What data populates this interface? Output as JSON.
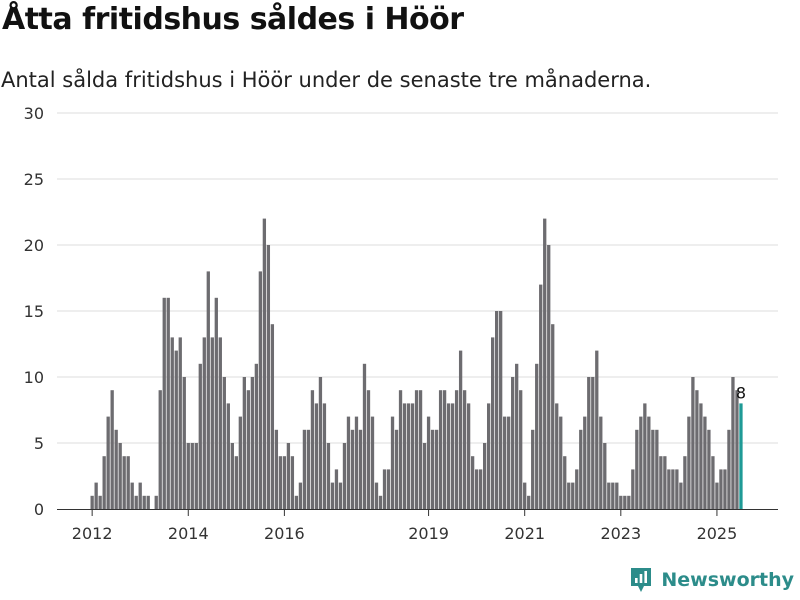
{
  "title": "Åtta fritidshus såldes i Höör",
  "subtitle": "Antal sålda fritidshus i Höör under de senaste tre månaderna.",
  "brand": "Newsworthy",
  "colors": {
    "bar": "#6d6c70",
    "highlight": "#1f9a96",
    "grid": "#dddddd",
    "brand": "#2c8c8a"
  },
  "chart_data": {
    "type": "bar",
    "ylim": [
      0,
      30
    ],
    "yticks": [
      0,
      5,
      10,
      15,
      20,
      25,
      30
    ],
    "x_start": "2012-01",
    "xticks": [
      "2012",
      "2014",
      "2016",
      "2019",
      "2021",
      "2023",
      "2025"
    ],
    "values": [
      1,
      2,
      1,
      4,
      7,
      9,
      6,
      5,
      4,
      4,
      2,
      1,
      2,
      1,
      1,
      0,
      1,
      9,
      16,
      16,
      13,
      12,
      13,
      10,
      5,
      5,
      5,
      11,
      13,
      18,
      13,
      16,
      13,
      10,
      8,
      5,
      4,
      7,
      10,
      9,
      10,
      11,
      18,
      22,
      20,
      14,
      6,
      4,
      4,
      5,
      4,
      1,
      2,
      6,
      6,
      9,
      8,
      10,
      8,
      5,
      2,
      3,
      2,
      5,
      7,
      6,
      7,
      6,
      11,
      9,
      7,
      2,
      1,
      3,
      3,
      7,
      6,
      9,
      8,
      8,
      8,
      9,
      9,
      5,
      7,
      6,
      6,
      9,
      9,
      8,
      8,
      9,
      12,
      9,
      8,
      4,
      3,
      3,
      5,
      8,
      13,
      15,
      15,
      7,
      7,
      10,
      11,
      9,
      2,
      1,
      6,
      11,
      17,
      22,
      20,
      14,
      8,
      7,
      4,
      2,
      2,
      3,
      6,
      7,
      10,
      10,
      12,
      7,
      5,
      2,
      2,
      2,
      1,
      1,
      1,
      3,
      6,
      7,
      8,
      7,
      6,
      6,
      4,
      4,
      3,
      3,
      3,
      2,
      4,
      7,
      10,
      9,
      8,
      7,
      6,
      4,
      2,
      3,
      3,
      6,
      10,
      9,
      8
    ],
    "highlight_label": "8"
  }
}
